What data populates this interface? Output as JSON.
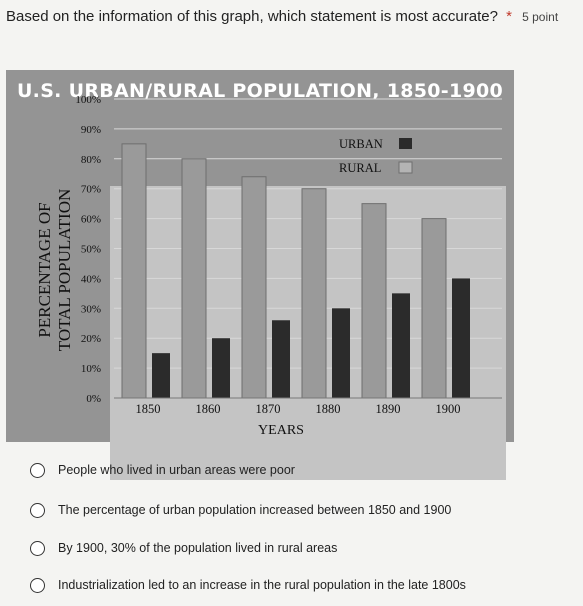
{
  "question": {
    "text": "Based on the information of this graph, which statement is most accurate?",
    "required_mark": "*",
    "points": "5 point"
  },
  "chart_data": {
    "type": "bar",
    "title": "U.S. URBAN/RURAL POPULATION, 1850-1900",
    "xlabel": "YEARS",
    "ylabel": "PERCENTAGE OF TOTAL POPULATION",
    "categories": [
      "1850",
      "1860",
      "1870",
      "1880",
      "1890",
      "1900"
    ],
    "series": [
      {
        "name": "URBAN",
        "values": [
          15,
          20,
          26,
          30,
          35,
          40
        ],
        "color": "#2b2b2b"
      },
      {
        "name": "RURAL",
        "values": [
          85,
          80,
          74,
          70,
          65,
          60
        ],
        "color": "#9a9a9a"
      }
    ],
    "ylim": [
      0,
      100
    ],
    "yticks": [
      "0%",
      "10%",
      "20%",
      "30%",
      "40%",
      "50%",
      "60%",
      "70%",
      "80%",
      "90%",
      "100%"
    ],
    "legend_position": "top-right",
    "grid": true
  },
  "options": [
    "People who lived in urban areas were poor",
    "The percentage of urban population increased between 1850 and 1900",
    "By 1900, 30% of the population lived in rural areas",
    "Industrialization led to an increase in the rural population in the late 1800s"
  ]
}
